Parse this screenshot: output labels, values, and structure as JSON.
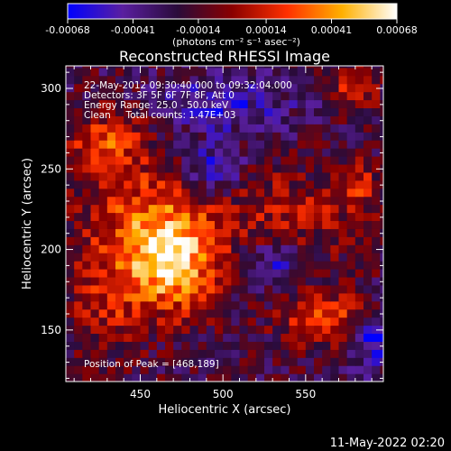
{
  "chart_data": {
    "type": "heatmap",
    "title": "Reconstructed RHESSI Image",
    "xlabel": "Heliocentric X (arcsec)",
    "ylabel": "Heliocentric Y (arcsec)",
    "xlim": [
      405,
      597
    ],
    "ylim": [
      118,
      314
    ],
    "x_ticks": [
      450,
      500,
      550
    ],
    "y_ticks": [
      150,
      200,
      250,
      300
    ],
    "colorbar": {
      "range": [
        -0.00068,
        0.00068
      ],
      "ticks": [
        "-0.00068",
        "-0.00041",
        "-0.00014",
        "0.00014",
        "0.00041",
        "0.00068"
      ],
      "units": "(photons cm⁻² s⁻¹ asec⁻²)",
      "colors": [
        "#0000ff",
        "#5a1fa0",
        "#2a0b3a",
        "#8a0000",
        "#ff3000",
        "#ffb000",
        "#ffffff"
      ]
    },
    "annotations": [
      "22-May-2012 09:30:40.000 to 09:32:04.000",
      "Detectors: 3F 5F 6F 7F 8F, Att 0",
      "Energy Range: 25.0 - 50.0 keV",
      "Clean     Total counts: 1.47E+03"
    ],
    "peak_text": "Position of Peak = [468,189]",
    "peak": [
      468,
      189
    ],
    "sources": [
      {
        "x": 470,
        "y": 191,
        "sx": 20,
        "sy": 22,
        "amp": 0.00068
      },
      {
        "x": 455,
        "y": 220,
        "sx": 26,
        "sy": 22,
        "amp": 0.00036
      },
      {
        "x": 430,
        "y": 265,
        "sx": 18,
        "sy": 16,
        "amp": 0.00042
      },
      {
        "x": 562,
        "y": 157,
        "sx": 20,
        "sy": 12,
        "amp": 0.00044
      },
      {
        "x": 540,
        "y": 222,
        "sx": 30,
        "sy": 22,
        "amp": 0.00026
      },
      {
        "x": 430,
        "y": 170,
        "sx": 18,
        "sy": 28,
        "amp": 0.00028
      },
      {
        "x": 580,
        "y": 300,
        "sx": 10,
        "sy": 10,
        "amp": 0.00038
      },
      {
        "x": 580,
        "y": 240,
        "sx": 10,
        "sy": 12,
        "amp": 0.0003
      },
      {
        "x": 495,
        "y": 250,
        "sx": 12,
        "sy": 10,
        "amp": -0.0004
      },
      {
        "x": 590,
        "y": 145,
        "sx": 10,
        "sy": 12,
        "amp": -0.00045
      },
      {
        "x": 530,
        "y": 190,
        "sx": 14,
        "sy": 10,
        "amp": -0.00036
      },
      {
        "x": 500,
        "y": 290,
        "sx": 30,
        "sy": 12,
        "amp": -0.0003
      }
    ]
  },
  "footer": {
    "timestamp": "11-May-2022 02:20"
  }
}
